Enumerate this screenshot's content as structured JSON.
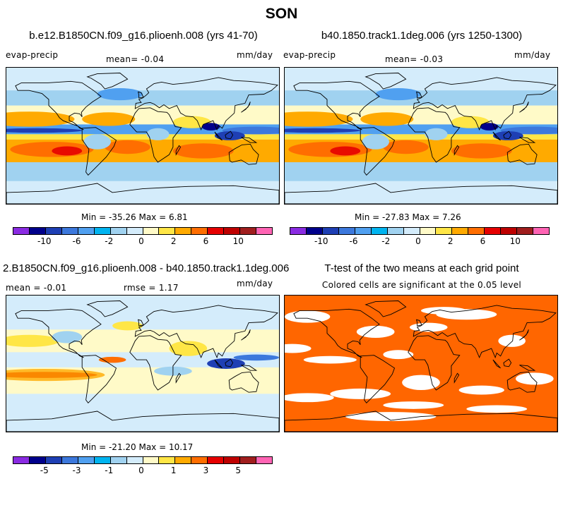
{
  "page": {
    "title": "SON"
  },
  "panels": {
    "a": {
      "title": "b.e12.B1850CN.f09_g16.plioenh.008 (yrs 41-70)",
      "left_label": "evap-precip",
      "mean_label": "mean=  -0.04",
      "units": "mm/day",
      "minmax": "Min = -35.26 Max =   6.81"
    },
    "b": {
      "title": "b40.1850.track1.1deg.006 (yrs 1250-1300)",
      "left_label": "evap-precip",
      "mean_label": "mean=  -0.03",
      "units": "mm/day",
      "minmax": "Min = -27.83 Max =   7.26"
    },
    "c": {
      "title": "2.B1850CN.f09_g16.plioenh.008 - b40.1850.track1.1deg.006",
      "mean_label": "mean =  -0.01",
      "rmse_label": "rmse =   1.17",
      "units": "mm/day",
      "minmax": "Min = -21.20 Max =  10.17"
    },
    "d": {
      "title": "T-test of the two means at each grid point",
      "subtitle": "Colored cells are significant at the 0.05 level"
    }
  },
  "colorbars": {
    "main": {
      "colors": [
        "#8a2be2",
        "#00008b",
        "#1e3fb4",
        "#3c78dc",
        "#50a0f0",
        "#00b4f0",
        "#a0d2f0",
        "#d4ecfb",
        "#fffac8",
        "#ffe646",
        "#ffaa00",
        "#ff6e00",
        "#e60000",
        "#be0000",
        "#a01e1e",
        "#ff64b4"
      ],
      "ticks": [
        "-10",
        "-6",
        "-2",
        "0",
        "2",
        "6",
        "10"
      ]
    },
    "diff": {
      "colors": [
        "#8a2be2",
        "#00008b",
        "#1e3fb4",
        "#3c78dc",
        "#50a0f0",
        "#00b4f0",
        "#a0d2f0",
        "#d4ecfb",
        "#fffac8",
        "#ffe646",
        "#ffaa00",
        "#ff6e00",
        "#e60000",
        "#be0000",
        "#a01e1e",
        "#ff64b4"
      ],
      "ticks": [
        "-5",
        "-3",
        "-1",
        "0",
        "1",
        "3",
        "5"
      ]
    }
  },
  "colors": {
    "significant": "#ff6600",
    "not_significant": "#ffffff"
  }
}
